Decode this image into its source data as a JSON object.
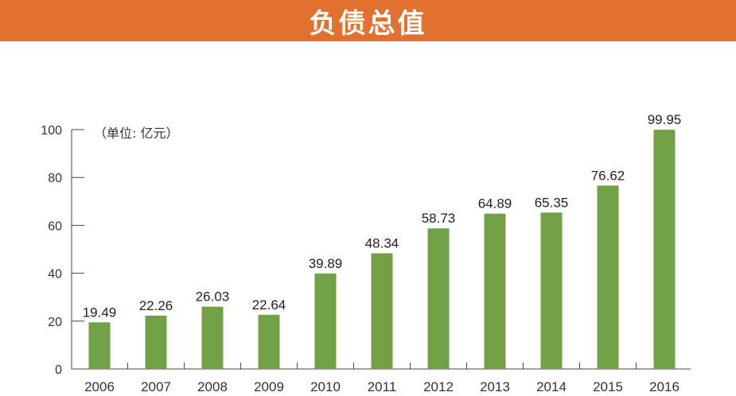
{
  "header": {
    "title": "负债总值"
  },
  "chart_data": {
    "type": "bar",
    "title": "负债总值",
    "unit_note": "（单位: 亿元）",
    "xlabel": "",
    "ylabel": "",
    "categories": [
      "2006",
      "2007",
      "2008",
      "2009",
      "2010",
      "2011",
      "2012",
      "2013",
      "2014",
      "2015",
      "2016"
    ],
    "values": [
      19.49,
      22.26,
      26.03,
      22.64,
      39.89,
      48.34,
      58.73,
      64.89,
      65.35,
      76.62,
      99.95
    ],
    "value_labels": [
      "19.49",
      "22.26",
      "26.03",
      "22.64",
      "39.89",
      "48.34",
      "58.73",
      "64.89",
      "65.35",
      "76.62",
      "99.95"
    ],
    "ylim": [
      0,
      100
    ],
    "yticks": [
      0,
      20,
      40,
      60,
      80,
      100
    ],
    "grid": false,
    "bar_color": "#72a145",
    "axis_color": "#444444"
  },
  "colors": {
    "banner": "#e2702f",
    "banner_text": "#ffffff"
  }
}
